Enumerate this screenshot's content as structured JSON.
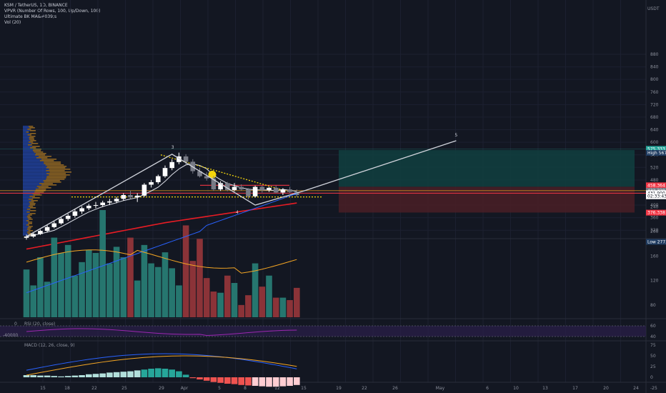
{
  "header": {
    "symbol_line": "KSM / TetherUS, 1D, BINANCE",
    "indicators": [
      "VPVR (Number Of Rows, 100, Up/Down, 100)",
      "Ultimate BK MA&#039;s",
      "Vol (20)"
    ],
    "currency": "USDT"
  },
  "price_axis": {
    "ticks": [
      "880",
      "840",
      "800",
      "760",
      "720",
      "680",
      "640",
      "600",
      "560",
      "520",
      "480",
      "440",
      "400",
      "360",
      "320"
    ]
  },
  "price_labels": [
    {
      "text": "575.333",
      "price": 579,
      "color": "#26a69a"
    },
    {
      "text": "High 567.330",
      "price": 566,
      "color": "#1e3a5f"
    },
    {
      "text": "458.364",
      "price": 463,
      "color": "#f23645"
    },
    {
      "text": "432.329",
      "price": 446,
      "color": "#787b86"
    },
    {
      "text": "431.900",
      "price": 438,
      "color": "#ffffff"
    },
    {
      "text": "02:33:43",
      "price": 428,
      "color": "#ffffff"
    },
    {
      "text": "376.338",
      "price": 376,
      "color": "#f23645"
    },
    {
      "text": "Low 277.532",
      "price": 283,
      "color": "#1e3a5f"
    }
  ],
  "volume_axis": {
    "ticks": [
      "240",
      "200",
      "160",
      "120",
      "80"
    ]
  },
  "rsi_panel": {
    "title": "RSI (20, close)",
    "left_ticks": [
      "0",
      "-40000"
    ],
    "right_ticks": [
      "60",
      "40"
    ]
  },
  "macd_panel": {
    "title": "MACD (12, 26, close, 9)",
    "right_ticks": [
      "75",
      "50",
      "25",
      "0",
      "-25"
    ]
  },
  "time_axis": {
    "ticks": [
      "15",
      "18",
      "22",
      "25",
      "29",
      "Apr",
      "5",
      "8",
      "12",
      "15",
      "19",
      "22",
      "26",
      "May",
      "6",
      "10",
      "13",
      "17",
      "20",
      "24"
    ]
  },
  "wave_labels": [
    "3",
    "4",
    "5"
  ],
  "chart_data": {
    "type": "candlestick",
    "ylim": [
      260,
      900
    ],
    "candles": [
      [
        296,
        306,
        290,
        300
      ],
      [
        300,
        312,
        296,
        308
      ],
      [
        308,
        322,
        305,
        318
      ],
      [
        318,
        336,
        313,
        330
      ],
      [
        330,
        348,
        326,
        342
      ],
      [
        342,
        362,
        338,
        356
      ],
      [
        356,
        372,
        350,
        366
      ],
      [
        366,
        386,
        360,
        380
      ],
      [
        380,
        396,
        372,
        390
      ],
      [
        390,
        404,
        384,
        398
      ],
      [
        398,
        410,
        390,
        400
      ],
      [
        400,
        414,
        394,
        408
      ],
      [
        408,
        420,
        400,
        412
      ],
      [
        412,
        426,
        406,
        420
      ],
      [
        420,
        438,
        414,
        432
      ],
      [
        432,
        446,
        420,
        425
      ],
      [
        425,
        438,
        410,
        430
      ],
      [
        430,
        470,
        426,
        465
      ],
      [
        465,
        480,
        456,
        473
      ],
      [
        473,
        497,
        467,
        492
      ],
      [
        492,
        526,
        487,
        518
      ],
      [
        518,
        546,
        511,
        537
      ],
      [
        537,
        567,
        530,
        555
      ],
      [
        555,
        562,
        530,
        538
      ],
      [
        538,
        546,
        500,
        508
      ],
      [
        508,
        518,
        488,
        492
      ],
      [
        492,
        505,
        478,
        485
      ],
      [
        485,
        492,
        445,
        450
      ],
      [
        450,
        476,
        445,
        470
      ],
      [
        470,
        474,
        444,
        448
      ],
      [
        448,
        470,
        444,
        458
      ],
      [
        458,
        466,
        446,
        450
      ],
      [
        450,
        454,
        418,
        428
      ],
      [
        428,
        462,
        424,
        458
      ],
      [
        458,
        462,
        440,
        448
      ],
      [
        448,
        458,
        442,
        455
      ],
      [
        455,
        462,
        438,
        440
      ],
      [
        440,
        454,
        432,
        450
      ],
      [
        450,
        458,
        438,
        442
      ],
      [
        442,
        450,
        426,
        432
      ]
    ],
    "volume": [
      138,
      112,
      158,
      118,
      190,
      165,
      178,
      128,
      150,
      170,
      165,
      235,
      148,
      175,
      158,
      190,
      120,
      178,
      148,
      142,
      166,
      140,
      112,
      210,
      152,
      188,
      124,
      102,
      100,
      128,
      116,
      80,
      96,
      148,
      110,
      128,
      92,
      92,
      88,
      108
    ],
    "volume_ylim": [
      60,
      270
    ],
    "macd_hist": [
      5,
      5,
      4,
      4,
      3,
      2,
      3,
      4,
      5,
      7,
      8,
      9,
      11,
      12,
      13,
      14,
      16,
      18,
      20,
      21,
      20,
      18,
      14,
      6,
      -2,
      -5,
      -8,
      -11,
      -13,
      -15,
      -16,
      -18,
      -19,
      -20,
      -21,
      -22,
      -22,
      -21,
      -20,
      -18
    ],
    "macd_ylim": [
      -30,
      80
    ],
    "wave_points": [
      [
        0,
        300
      ],
      [
        21,
        562
      ],
      [
        33,
        400
      ],
      [
        40,
        445
      ],
      [
        62,
        605
      ]
    ],
    "targets": {
      "take_profit": 575.333,
      "entry": 458.364,
      "stop": 376.338
    }
  }
}
